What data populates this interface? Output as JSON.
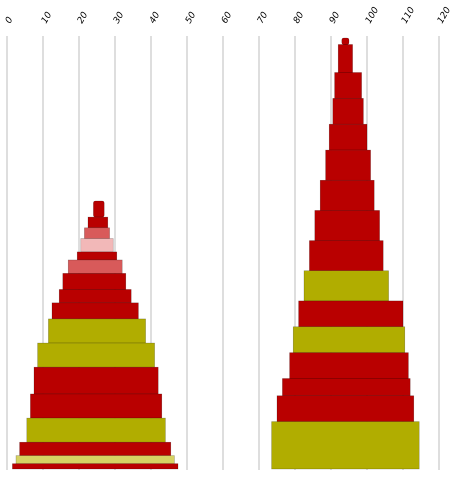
{
  "chart_data": {
    "type": "bar",
    "orientation": "vertical-profile",
    "xlim": [
      0,
      120
    ],
    "ticks": [
      "0",
      "10",
      "20",
      "30",
      "40",
      "50",
      "60",
      "70",
      "80",
      "90",
      "100",
      "110",
      "120"
    ],
    "grid": true,
    "legend": "none",
    "colors": {
      "red": "#b90000",
      "olive": "#b1ad00",
      "light_olive": "#d6d263",
      "light_red": "#d85a5a",
      "pink": "#f2b8b8"
    },
    "columns": [
      {
        "bands": [
          {
            "x0": 24.0,
            "x1": 27.0,
            "top": 0.0,
            "bottom": 0.06,
            "color": "red"
          },
          {
            "x0": 22.5,
            "x1": 28.0,
            "top": 0.06,
            "bottom": 0.1,
            "color": "red"
          },
          {
            "x0": 21.5,
            "x1": 28.5,
            "top": 0.1,
            "bottom": 0.14,
            "color": "light_red"
          },
          {
            "x0": 20.5,
            "x1": 29.5,
            "top": 0.14,
            "bottom": 0.19,
            "color": "pink"
          },
          {
            "x0": 19.5,
            "x1": 30.5,
            "top": 0.19,
            "bottom": 0.22,
            "color": "red"
          },
          {
            "x0": 17.0,
            "x1": 32.0,
            "top": 0.22,
            "bottom": 0.27,
            "color": "light_red"
          },
          {
            "x0": 15.5,
            "x1": 33.0,
            "top": 0.27,
            "bottom": 0.33,
            "color": "red"
          },
          {
            "x0": 14.5,
            "x1": 34.5,
            "top": 0.33,
            "bottom": 0.38,
            "color": "red"
          },
          {
            "x0": 12.5,
            "x1": 36.5,
            "top": 0.38,
            "bottom": 0.44,
            "color": "red"
          },
          {
            "x0": 11.5,
            "x1": 38.5,
            "top": 0.44,
            "bottom": 0.53,
            "color": "olive"
          },
          {
            "x0": 8.5,
            "x1": 41.0,
            "top": 0.53,
            "bottom": 0.62,
            "color": "olive"
          },
          {
            "x0": 7.5,
            "x1": 42.0,
            "top": 0.62,
            "bottom": 0.72,
            "color": "red"
          },
          {
            "x0": 6.5,
            "x1": 43.0,
            "top": 0.72,
            "bottom": 0.81,
            "color": "red"
          },
          {
            "x0": 5.5,
            "x1": 44.0,
            "top": 0.81,
            "bottom": 0.9,
            "color": "olive"
          },
          {
            "x0": 3.5,
            "x1": 45.5,
            "top": 0.9,
            "bottom": 0.95,
            "color": "red"
          },
          {
            "x0": 2.5,
            "x1": 46.5,
            "top": 0.95,
            "bottom": 0.98,
            "color": "light_olive"
          },
          {
            "x0": 1.5,
            "x1": 47.5,
            "top": 0.98,
            "bottom": 1.0,
            "color": "red"
          }
        ],
        "top_y": 201,
        "bottom_y": 469
      },
      {
        "bands": [
          {
            "x0": 93.0,
            "x1": 95.0,
            "top": 0.0,
            "bottom": 0.015,
            "color": "red"
          },
          {
            "x0": 92.0,
            "x1": 96.0,
            "top": 0.015,
            "bottom": 0.08,
            "color": "red"
          },
          {
            "x0": 91.0,
            "x1": 98.5,
            "top": 0.08,
            "bottom": 0.14,
            "color": "red"
          },
          {
            "x0": 90.5,
            "x1": 99.0,
            "top": 0.14,
            "bottom": 0.2,
            "color": "red"
          },
          {
            "x0": 89.5,
            "x1": 100.0,
            "top": 0.2,
            "bottom": 0.26,
            "color": "red"
          },
          {
            "x0": 88.5,
            "x1": 101.0,
            "top": 0.26,
            "bottom": 0.33,
            "color": "red"
          },
          {
            "x0": 87.0,
            "x1": 102.0,
            "top": 0.33,
            "bottom": 0.4,
            "color": "red"
          },
          {
            "x0": 85.5,
            "x1": 103.5,
            "top": 0.4,
            "bottom": 0.47,
            "color": "red"
          },
          {
            "x0": 84.0,
            "x1": 104.5,
            "top": 0.47,
            "bottom": 0.54,
            "color": "red"
          },
          {
            "x0": 82.5,
            "x1": 106.0,
            "top": 0.54,
            "bottom": 0.61,
            "color": "olive"
          },
          {
            "x0": 81.0,
            "x1": 110.0,
            "top": 0.61,
            "bottom": 0.67,
            "color": "red"
          },
          {
            "x0": 79.5,
            "x1": 110.5,
            "top": 0.67,
            "bottom": 0.73,
            "color": "olive"
          },
          {
            "x0": 78.5,
            "x1": 111.5,
            "top": 0.73,
            "bottom": 0.79,
            "color": "red"
          },
          {
            "x0": 76.5,
            "x1": 112.0,
            "top": 0.79,
            "bottom": 0.83,
            "color": "red"
          },
          {
            "x0": 75.0,
            "x1": 113.0,
            "top": 0.83,
            "bottom": 0.89,
            "color": "red"
          },
          {
            "x0": 73.5,
            "x1": 114.5,
            "top": 0.89,
            "bottom": 1.0,
            "color": "olive"
          }
        ],
        "top_y": 38,
        "bottom_y": 469
      }
    ]
  }
}
